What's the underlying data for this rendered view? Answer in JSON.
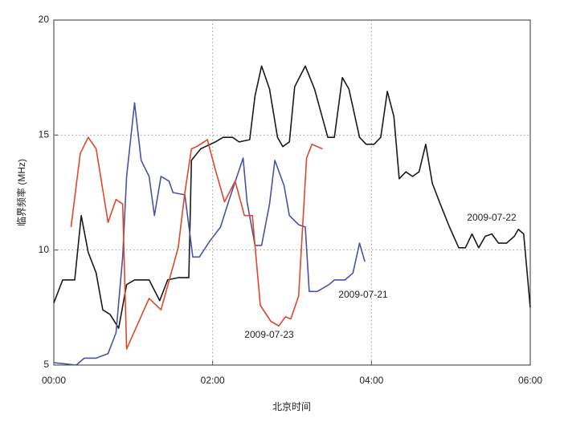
{
  "chart_data": {
    "type": "line",
    "y_label": "临界频率 (MHz)",
    "x_label": "北京时间",
    "xlim": [
      0,
      360
    ],
    "xticks": [
      {
        "value": 0,
        "label": "00:00"
      },
      {
        "value": 120,
        "label": "02:00"
      },
      {
        "value": 240,
        "label": "04:00"
      },
      {
        "value": 360,
        "label": "06:00"
      }
    ],
    "ylim": [
      5,
      20
    ],
    "yticks": [
      5,
      10,
      15,
      20
    ],
    "grid": true,
    "series": [
      {
        "name": "2009-07-22",
        "color": "#1a1a1a",
        "x": [
          0,
          6.7,
          15.8,
          20.7,
          26,
          32,
          37,
          42.5,
          49,
          55,
          61,
          72,
          80,
          86,
          94,
          102,
          104,
          111,
          122,
          128,
          135,
          140,
          148,
          152,
          157,
          163,
          169,
          173,
          178,
          182,
          190,
          197,
          207,
          212,
          218,
          223,
          231,
          236,
          242,
          247,
          252,
          257,
          261,
          266,
          271,
          276,
          281,
          286,
          292,
          299,
          306,
          311,
          316,
          321,
          326,
          331,
          336,
          342,
          348,
          351,
          355,
          360
        ],
        "values": [
          7.7,
          8.7,
          8.7,
          11.5,
          9.9,
          9.0,
          7.4,
          7.2,
          6.6,
          8.5,
          8.7,
          8.7,
          7.8,
          8.7,
          8.8,
          8.8,
          13.9,
          14.4,
          14.7,
          14.9,
          14.9,
          14.7,
          14.8,
          16.7,
          18.0,
          17.0,
          14.9,
          14.5,
          14.7,
          17.1,
          18.0,
          17.0,
          14.9,
          14.9,
          17.5,
          17.0,
          14.9,
          14.6,
          14.6,
          14.9,
          16.9,
          15.8,
          13.1,
          13.4,
          13.2,
          13.4,
          14.6,
          12.9,
          12.0,
          11.0,
          10.1,
          10.1,
          10.7,
          10.1,
          10.6,
          10.7,
          10.3,
          10.3,
          10.6,
          10.9,
          10.7,
          7.5
        ]
      },
      {
        "name": "2009-07-21",
        "color": "#4a52a8",
        "x": [
          0,
          17,
          23,
          32,
          41,
          47,
          52,
          55,
          61,
          66,
          72,
          76,
          81,
          87,
          90,
          99,
          105,
          110,
          118,
          126,
          132,
          143,
          146,
          152,
          157,
          163,
          167,
          174,
          178,
          185,
          190,
          193,
          199,
          208,
          212,
          220,
          226,
          231,
          235
        ],
        "values": [
          5.1,
          5.0,
          5.3,
          5.3,
          5.5,
          6.4,
          9.7,
          13.2,
          16.4,
          13.9,
          13.2,
          11.5,
          13.2,
          13.0,
          12.5,
          12.4,
          9.7,
          9.7,
          10.4,
          11.0,
          12.1,
          14.0,
          12.1,
          10.2,
          10.2,
          12.0,
          13.9,
          12.8,
          11.5,
          11.1,
          11.0,
          8.2,
          8.2,
          8.5,
          8.7,
          8.7,
          9.0,
          10.3,
          9.5
        ]
      },
      {
        "name": "2009-07-23",
        "color": "#e0462a",
        "x": [
          13,
          20,
          26,
          32,
          41,
          47,
          52,
          55,
          72,
          81,
          94,
          99,
          104,
          108,
          116,
          122,
          129,
          137,
          144,
          150,
          156,
          164,
          170,
          175,
          179,
          185,
          191,
          195,
          203
        ],
        "values": [
          11.0,
          14.2,
          14.9,
          14.4,
          11.2,
          12.2,
          12.0,
          5.7,
          7.9,
          7.4,
          10.1,
          12.5,
          14.4,
          14.5,
          14.8,
          13.5,
          12.1,
          13.0,
          11.5,
          11.5,
          7.6,
          6.9,
          6.7,
          7.1,
          7.0,
          8.0,
          14.0,
          14.6,
          14.4
        ]
      }
    ]
  }
}
